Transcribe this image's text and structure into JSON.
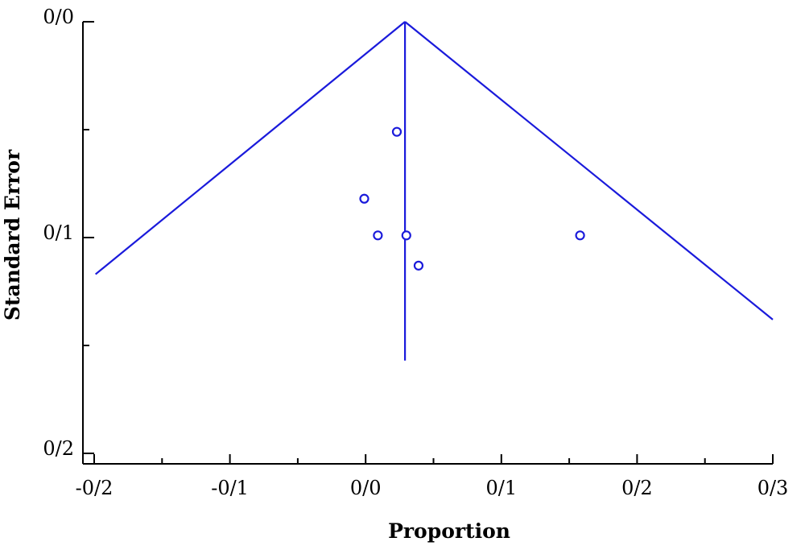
{
  "chart_data": {
    "type": "scatter",
    "subtype": "funnel-plot",
    "xlabel": "Proportion",
    "ylabel": "Standard Error",
    "xlim": [
      -0.2,
      0.3
    ],
    "ylim": [
      0.0,
      0.2
    ],
    "y_inverted": true,
    "x_ticks": [
      {
        "value": -0.2,
        "label": "-0/2"
      },
      {
        "value": -0.1,
        "label": "-0/1"
      },
      {
        "value": 0.0,
        "label": "0/0"
      },
      {
        "value": 0.1,
        "label": "0/1"
      },
      {
        "value": 0.2,
        "label": "0/2"
      },
      {
        "value": 0.3,
        "label": "0/3"
      }
    ],
    "x_minor_ticks": [
      -0.15,
      -0.05,
      0.05,
      0.15,
      0.25
    ],
    "y_ticks": [
      {
        "value": 0.0,
        "label": "0/0"
      },
      {
        "value": 0.1,
        "label": "0/1"
      },
      {
        "value": 0.2,
        "label": "0/2"
      }
    ],
    "y_minor_ticks": [
      0.05,
      0.15
    ],
    "pooled_estimate": 0.029,
    "pooled_line_se_range": [
      0.0,
      0.157
    ],
    "funnel_left": [
      [
        0.029,
        0.0
      ],
      [
        -0.199,
        0.117
      ]
    ],
    "funnel_right": [
      [
        0.029,
        0.0
      ],
      [
        0.3,
        0.138
      ]
    ],
    "points": [
      {
        "x": 0.023,
        "y": 0.051
      },
      {
        "x": -0.001,
        "y": 0.082
      },
      {
        "x": 0.009,
        "y": 0.099
      },
      {
        "x": 0.03,
        "y": 0.099
      },
      {
        "x": 0.039,
        "y": 0.113
      },
      {
        "x": 0.158,
        "y": 0.099
      }
    ],
    "grid": false,
    "legend": "none",
    "color": "#1a1adb"
  }
}
